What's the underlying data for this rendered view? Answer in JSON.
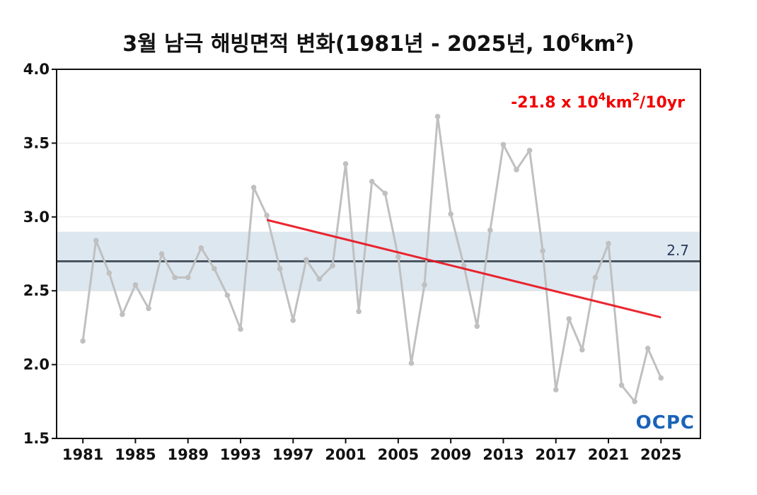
{
  "chart_data": {
    "type": "line",
    "title": "3월 남극 해빙면적 변화(1981년 - 2025년, 10⁶km²)",
    "title_main": "3월 남극 해빙면적 변화(1981년 - 2025년, 10",
    "title_unit_exp": "6",
    "title_unit_km": "km",
    "title_unit_exp2": "2",
    "title_end": ")",
    "xlabel": "",
    "ylabel": "",
    "ylim": [
      1.5,
      4.0
    ],
    "yticks": [
      "1.5",
      "2.0",
      "2.5",
      "3.0",
      "3.5",
      "4.0"
    ],
    "ytick_values": [
      1.5,
      2.0,
      2.5,
      3.0,
      3.5,
      4.0
    ],
    "xticks": [
      "1981",
      "1985",
      "1989",
      "1993",
      "1997",
      "2001",
      "2005",
      "2009",
      "2013",
      "2017",
      "2021",
      "2025"
    ],
    "xtick_values": [
      1981,
      1985,
      1989,
      1993,
      1997,
      2001,
      2005,
      2009,
      2013,
      2017,
      2021,
      2025
    ],
    "grid": true,
    "series": [
      {
        "x": [
          1981,
          1982,
          1983,
          1984,
          1985,
          1986,
          1987,
          1988,
          1989,
          1990,
          1991,
          1992,
          1993,
          1994,
          1995,
          1996,
          1997,
          1998,
          1999,
          2000,
          2001,
          2002,
          2003,
          2004,
          2005,
          2006,
          2007,
          2008,
          2009,
          2010,
          2011,
          2012,
          2013,
          2014,
          2015,
          2016,
          2017,
          2018,
          2019,
          2020,
          2021,
          2022,
          2023,
          2024,
          2025
        ],
        "values": [
          2.16,
          2.84,
          2.62,
          2.34,
          2.54,
          2.38,
          2.75,
          2.59,
          2.59,
          2.79,
          2.65,
          2.47,
          2.24,
          3.2,
          3.01,
          2.65,
          2.3,
          2.71,
          2.58,
          2.67,
          3.36,
          2.36,
          3.24,
          3.16,
          2.73,
          2.01,
          2.54,
          3.68,
          3.02,
          2.67,
          2.26,
          2.91,
          3.49,
          3.32,
          3.45,
          2.77,
          1.83,
          2.31,
          2.1,
          2.59,
          2.82,
          1.86,
          1.75,
          2.11,
          1.91
        ],
        "color": "#c0c0c0"
      }
    ],
    "trend": {
      "x_start": 1995,
      "y_start": 2.98,
      "x_end": 2025,
      "y_end": 2.32,
      "color": "#e8141e",
      "label_main": "-21.8 x 10",
      "label_exp": "4",
      "label_km": "km",
      "label_exp2": "2",
      "label_end": "/10yr"
    },
    "mean": {
      "value": 2.7,
      "label": "2.7",
      "band": [
        2.5,
        2.9
      ],
      "color": "#4a5560",
      "band_color": "#dde7f0"
    },
    "logo_text": "OCPC"
  }
}
